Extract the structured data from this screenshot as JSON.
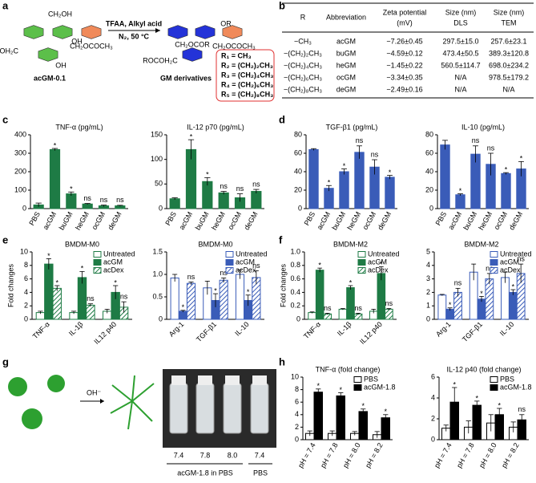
{
  "panel_labels": [
    "a",
    "b",
    "c",
    "d",
    "e",
    "f",
    "g",
    "h"
  ],
  "scheme": {
    "start_name": "acGM-0.1",
    "reagents": "TFAA, Alkyl acid",
    "conditions": "N₂, 50 °C",
    "product_name": "GM derivatives",
    "start_labels": [
      "CH₂OH",
      "OH",
      "CH₂OCOCH₃",
      "HOH₂C",
      "OH"
    ],
    "product_labels": [
      "CH₂OCOR",
      "OR",
      "CH₂OCOCH₃",
      "ROCOH₂C"
    ],
    "r_groups": [
      "R₁ = CH₃",
      "R₂ = (CH₂)₂CH₃",
      "R₃ = (CH₂)₄CH₃",
      "R₄ = (CH₂)₆CH₃",
      "R₅ = (CH₂)₈CH₃"
    ]
  },
  "table": {
    "columns": [
      [
        "R"
      ],
      [
        "Abbreviation"
      ],
      [
        "Zeta potential",
        "(mV)"
      ],
      [
        "Size (nm)",
        "DLS"
      ],
      [
        "Size (nm)",
        "TEM"
      ]
    ],
    "rows": [
      [
        "−CH₃",
        "acGM",
        "−7.26±0.45",
        "297.5±15.0",
        "257.6±23.1"
      ],
      [
        "−(CH₂)₂CH₃",
        "buGM",
        "−4.59±0.12",
        "473.4±50.5",
        "389.3±120.8"
      ],
      [
        "−(CH₂)₄CH₃",
        "heGM",
        "−1.45±0.22",
        "560.5±114.7",
        "698.0±234.2"
      ],
      [
        "−(CH₂)₆CH₃",
        "ocGM",
        "−3.34±0.35",
        "N/A",
        "978.5±179.2"
      ],
      [
        "−(CH₂)₈CH₃",
        "deGM",
        "−2.49±0.16",
        "N/A",
        "N/A"
      ]
    ]
  },
  "vials": {
    "ph_labels": [
      "7.4",
      "7.8",
      "8.0",
      "7.4"
    ],
    "group_label": "acGM-1.8 in PBS",
    "control_label": "PBS",
    "reagent": "OH⁻"
  },
  "chart_data": [
    {
      "type": "bar",
      "title": "TNF-α (pg/mL)",
      "categories": [
        "PBS",
        "acGM",
        "buGM",
        "heGM",
        "ocGM",
        "deGM"
      ],
      "values": [
        20,
        320,
        80,
        25,
        15,
        15
      ],
      "errors": [
        10,
        6,
        10,
        3,
        4,
        3
      ],
      "annotations": [
        null,
        "*",
        "*",
        "ns",
        "ns",
        "ns"
      ],
      "color": "#1e7b45",
      "ylim": [
        0,
        400
      ],
      "yticks": [
        0,
        100,
        200,
        300,
        400
      ]
    },
    {
      "type": "bar",
      "title": "IL-12 p70  (pg/mL)",
      "categories": [
        "PBS",
        "acGM",
        "buGM",
        "heGM",
        "ocGM",
        "deGM"
      ],
      "values": [
        20,
        120,
        55,
        32,
        22,
        35
      ],
      "errors": [
        2,
        20,
        8,
        3,
        8,
        4
      ],
      "annotations": [
        null,
        "*",
        "*",
        "ns",
        "ns",
        "ns"
      ],
      "color": "#1e7b45",
      "ylim": [
        0,
        150
      ],
      "yticks": [
        0,
        50,
        100,
        150
      ]
    },
    {
      "type": "bar",
      "title": "TGF-β1 (pg/mL)",
      "categories": [
        "PBS",
        "acGM",
        "buGM",
        "heGM",
        "ocGM",
        "deGM"
      ],
      "values": [
        64,
        22,
        40,
        61,
        45,
        34
      ],
      "errors": [
        1,
        3,
        3,
        7,
        8,
        2
      ],
      "annotations": [
        null,
        "*",
        "*",
        "ns",
        "ns",
        "*"
      ],
      "color": "#3a5cb8",
      "ylim": [
        0,
        80
      ],
      "yticks": [
        0,
        20,
        40,
        60,
        80
      ]
    },
    {
      "type": "bar",
      "title": "IL-10 (pg/mL)",
      "categories": [
        "PBS",
        "acGM",
        "buGM",
        "heGM",
        "ocGM",
        "deGM"
      ],
      "values": [
        69,
        15,
        59,
        48,
        38,
        43
      ],
      "errors": [
        5,
        1,
        9,
        12,
        1,
        8
      ],
      "annotations": [
        null,
        "*",
        "ns",
        "ns",
        "*",
        "*"
      ],
      "color": "#3a5cb8",
      "ylim": [
        0,
        80
      ],
      "yticks": [
        0,
        20,
        40,
        60,
        80
      ]
    },
    {
      "type": "bar",
      "title": "BMDM-M0",
      "ylabel": "Fold changes",
      "categories": [
        "TNF-α",
        "IL-1β",
        "IL12 p40"
      ],
      "legend": "upper right",
      "ylim": [
        0,
        10
      ],
      "yticks": [
        0,
        2,
        4,
        6,
        8,
        10
      ],
      "series": [
        {
          "name": "Untreated",
          "color": "#ffffff",
          "edgecolor": "#1e7b45",
          "values": [
            1,
            1,
            1.2
          ],
          "errors": [
            0.2,
            0.2,
            0.3
          ],
          "annotations": [
            null,
            null,
            null
          ]
        },
        {
          "name": "acGM",
          "color": "#1e7b45",
          "edgecolor": "#1e7b45",
          "values": [
            8.2,
            6.2,
            4
          ],
          "errors": [
            0.8,
            0.9,
            1
          ],
          "annotations": [
            "*",
            "*",
            "*"
          ]
        },
        {
          "name": "acDex",
          "color": "#1e7b45",
          "edgecolor": "#1e7b45",
          "hatch": true,
          "values": [
            4.6,
            2.1,
            1.8
          ],
          "errors": [
            0.4,
            0.2,
            0.8
          ],
          "annotations": [
            "*",
            "ns",
            "ns"
          ]
        }
      ]
    },
    {
      "type": "bar",
      "title": "BMDM-M0",
      "categories": [
        "Arg-1",
        "TGF-β1",
        "IL-10"
      ],
      "legend": "upper right",
      "ylim": [
        0,
        1.5
      ],
      "yticks": [
        0,
        0.5,
        {
          "value": 1,
          "label": "1.0"
        },
        1.5
      ],
      "series": [
        {
          "name": "Untreated",
          "color": "#ffffff",
          "edgecolor": "#3a5cb8",
          "values": [
            0.92,
            0.7,
            1
          ],
          "errors": [
            0.08,
            0.15,
            0.1
          ],
          "annotations": [
            null,
            null,
            null
          ]
        },
        {
          "name": "acGM",
          "color": "#3a5cb8",
          "edgecolor": "#3a5cb8",
          "values": [
            0.18,
            0.42,
            0.42
          ],
          "errors": [
            0.02,
            0.15,
            0.12
          ],
          "annotations": [
            "*",
            "*",
            "*"
          ]
        },
        {
          "name": "acDex",
          "color": "#3a5cb8",
          "edgecolor": "#3a5cb8",
          "hatch": true,
          "values": [
            0.8,
            0.87,
            0.93
          ],
          "errors": [
            0.03,
            0.05,
            0.15
          ],
          "annotations": [
            "ns",
            "ns",
            "ns"
          ]
        }
      ]
    },
    {
      "type": "bar",
      "title": "BMDM-M2",
      "ylabel": "Fold changes",
      "categories": [
        "TNF-α",
        "IL-1β",
        "IL12 p40"
      ],
      "legend": "upper right",
      "ylim": [
        0,
        1
      ],
      "yticks": [
        0,
        0.2,
        0.4,
        0.6,
        0.8,
        {
          "value": 1,
          "label": "1.0"
        }
      ],
      "series": [
        {
          "name": "Untreated",
          "color": "#ffffff",
          "edgecolor": "#1e7b45",
          "values": [
            0.1,
            0.15,
            0.12
          ],
          "errors": [
            0.01,
            0.01,
            0.03
          ],
          "annotations": [
            null,
            null,
            null
          ]
        },
        {
          "name": "acGM",
          "color": "#1e7b45",
          "edgecolor": "#1e7b45",
          "values": [
            0.73,
            0.47,
            0.68
          ],
          "errors": [
            0.03,
            0.03,
            0.1
          ],
          "annotations": [
            "*",
            "*",
            "*"
          ]
        },
        {
          "name": "acDex",
          "color": "#1e7b45",
          "edgecolor": "#1e7b45",
          "hatch": true,
          "values": [
            0.08,
            0.08,
            0.15
          ],
          "errors": [
            0.01,
            0.01,
            0.01
          ],
          "annotations": [
            "ns",
            "ns",
            "ns"
          ]
        }
      ]
    },
    {
      "type": "bar",
      "title": "BMDM-M2",
      "categories": [
        "Arg-1",
        "TGF-β1",
        "IL-10"
      ],
      "legend": "upper right",
      "ylim": [
        0,
        5
      ],
      "yticks": [
        0,
        1,
        2,
        3,
        4,
        5
      ],
      "series": [
        {
          "name": "Untreated",
          "color": "#ffffff",
          "edgecolor": "#3a5cb8",
          "values": [
            1.8,
            3.5,
            3.1
          ],
          "errors": [
            0.05,
            0.6,
            0.4
          ],
          "annotations": [
            null,
            null,
            null
          ]
        },
        {
          "name": "acGM",
          "color": "#3a5cb8",
          "edgecolor": "#3a5cb8",
          "values": [
            0.75,
            1.5,
            2
          ],
          "errors": [
            0.1,
            0.2,
            0.2
          ],
          "annotations": [
            "*",
            "*",
            "*"
          ]
        },
        {
          "name": "acDex",
          "color": "#3a5cb8",
          "edgecolor": "#3a5cb8",
          "hatch": true,
          "values": [
            2,
            3,
            3.4
          ],
          "errors": [
            0.3,
            0.4,
            0.7
          ],
          "annotations": [
            "ns",
            "ns",
            "ns"
          ]
        }
      ]
    },
    {
      "type": "bar",
      "title": "TNF-α (fold change)",
      "categories": [
        "pH = 7.4",
        "pH = 7.8",
        "pH = 8.0",
        "pH = 8.2"
      ],
      "legend": "upper right",
      "ylim": [
        0,
        10
      ],
      "yticks": [
        0,
        2,
        4,
        6,
        8,
        10
      ],
      "series": [
        {
          "name": "PBS",
          "color": "#ffffff",
          "edgecolor": "#000000",
          "values": [
            1,
            1,
            1,
            0.8
          ],
          "errors": [
            0.4,
            0.4,
            0.3,
            0.5
          ],
          "annotations": [
            null,
            null,
            null,
            null
          ]
        },
        {
          "name": "acGM-1.8",
          "color": "#000000",
          "edgecolor": "#000000",
          "values": [
            7.6,
            7,
            4.5,
            3.5
          ],
          "errors": [
            0.5,
            0.5,
            0.4,
            0.5
          ],
          "annotations": [
            "*",
            "*",
            "*",
            "*"
          ]
        }
      ]
    },
    {
      "type": "bar",
      "title": "IL-12 p40  (fold change)",
      "categories": [
        "pH = 7.4",
        "pH = 7.8",
        "pH = 8.0",
        "pH = 8.2"
      ],
      "legend": "upper right",
      "ylim": [
        0,
        6
      ],
      "yticks": [
        0,
        2,
        4,
        6
      ],
      "series": [
        {
          "name": "PBS",
          "color": "#ffffff",
          "edgecolor": "#000000",
          "values": [
            1.1,
            1.2,
            1.6,
            1.2
          ],
          "errors": [
            0.3,
            0.6,
            0.8,
            0.5
          ],
          "annotations": [
            null,
            null,
            null,
            null
          ]
        },
        {
          "name": "acGM-1.8",
          "color": "#000000",
          "edgecolor": "#000000",
          "values": [
            3.6,
            3.3,
            2.4,
            1.9
          ],
          "errors": [
            1.4,
            0.4,
            0.6,
            0.5
          ],
          "annotations": [
            "*",
            "*",
            "*",
            "ns"
          ]
        }
      ]
    }
  ]
}
